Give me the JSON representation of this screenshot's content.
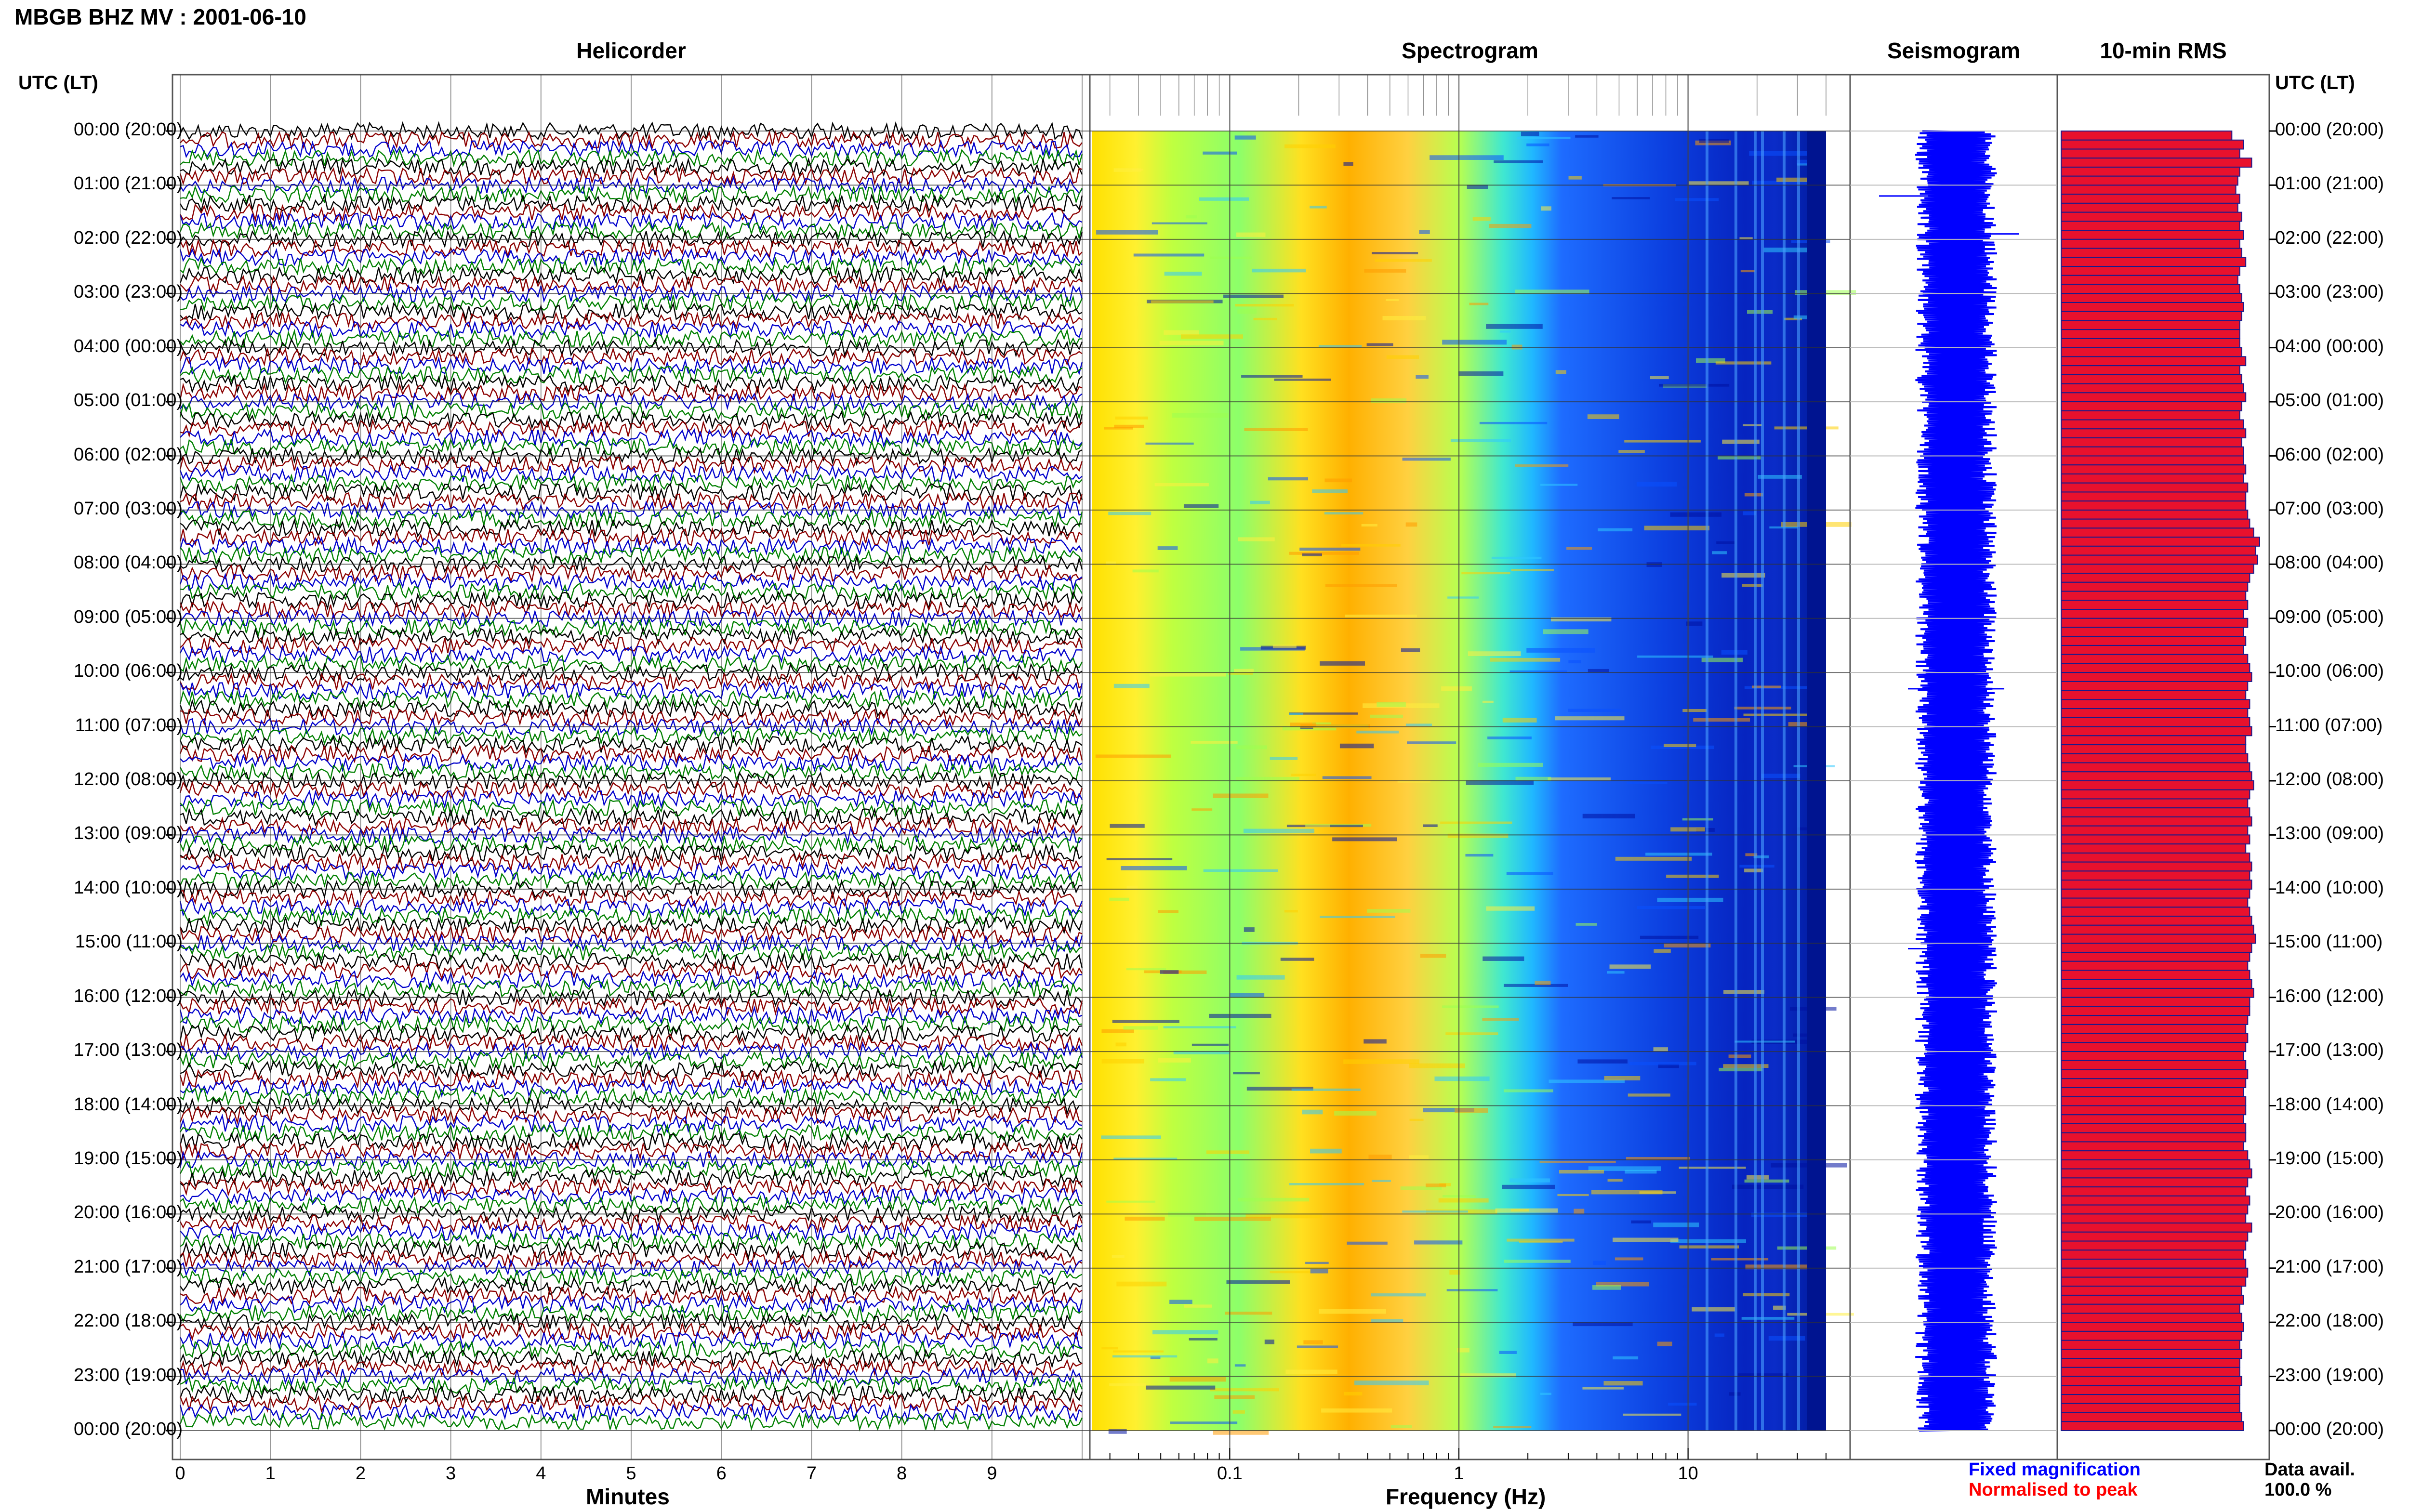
{
  "header": {
    "title": "MBGB BHZ MV : 2001-06-10"
  },
  "panels": {
    "helicorder": "Helicorder",
    "spectrogram": "Spectrogram",
    "seismogram": "Seismogram",
    "rms": "10-min RMS"
  },
  "time_axis_label": "UTC (LT)",
  "hours": [
    "00:00 (20:00)",
    "01:00 (21:00)",
    "02:00 (22:00)",
    "03:00 (23:00)",
    "04:00 (00:00)",
    "05:00 (01:00)",
    "06:00 (02:00)",
    "07:00 (03:00)",
    "08:00 (04:00)",
    "09:00 (05:00)",
    "10:00 (06:00)",
    "11:00 (07:00)",
    "12:00 (08:00)",
    "13:00 (09:00)",
    "14:00 (10:00)",
    "15:00 (11:00)",
    "16:00 (12:00)",
    "17:00 (13:00)",
    "18:00 (14:00)",
    "19:00 (15:00)",
    "20:00 (16:00)",
    "21:00 (17:00)",
    "22:00 (18:00)",
    "23:00 (19:00)",
    "00:00 (20:00)"
  ],
  "helicorder_axis": {
    "label": "Minutes",
    "ticks": [
      "0",
      "1",
      "2",
      "3",
      "4",
      "5",
      "6",
      "7",
      "8",
      "9"
    ]
  },
  "spectrogram_axis": {
    "label": "Frequency (Hz)",
    "ticks": [
      "0.1",
      "1",
      "10"
    ],
    "scale": "log"
  },
  "legend": {
    "fixed": "Fixed magnification",
    "normalised": "Normalised to peak",
    "data_avail_label": "Data avail.",
    "data_avail_value": "100.0 %"
  },
  "colors": {
    "trace_cycle": [
      "#000000",
      "#8b0000",
      "#0000cc",
      "#008000"
    ],
    "seismogram": "#0000ff",
    "rms_fill": "#e8112d",
    "rms_edge": "#1a1a8c",
    "legend_fixed": "#0000ff",
    "legend_normalised": "#ff0000"
  },
  "chart_data": [
    {
      "type": "line",
      "title": "Helicorder",
      "xlabel": "Minutes",
      "xlim": [
        0,
        10
      ],
      "rows": 144,
      "row_span_minutes": 10,
      "color_cycle": [
        "black",
        "darkred",
        "blue",
        "green"
      ]
    },
    {
      "type": "heatmap",
      "title": "Spectrogram",
      "xlabel": "Frequency (Hz)",
      "xscale": "log",
      "xlim": [
        0.025,
        40
      ],
      "colormap": "jet"
    },
    {
      "type": "line",
      "title": "Seismogram",
      "series": [
        {
          "name": "Fixed magnification"
        }
      ]
    },
    {
      "type": "bar",
      "title": "10-min RMS",
      "orientation": "horizontal",
      "bars": 144,
      "values_normalised": [
        0.86,
        0.92,
        0.9,
        0.96,
        0.9,
        0.89,
        0.88,
        0.9,
        0.89,
        0.91,
        0.9,
        0.92,
        0.9,
        0.91,
        0.93,
        0.9,
        0.89,
        0.9,
        0.91,
        0.92,
        0.91,
        0.9,
        0.9,
        0.9,
        0.91,
        0.93,
        0.9,
        0.91,
        0.92,
        0.93,
        0.91,
        0.9,
        0.92,
        0.93,
        0.91,
        0.92,
        0.92,
        0.93,
        0.92,
        0.94,
        0.93,
        0.93,
        0.94,
        0.95,
        0.97,
        1.0,
        0.98,
        0.99,
        0.97,
        0.95,
        0.94,
        0.93,
        0.94,
        0.92,
        0.94,
        0.92,
        0.93,
        0.92,
        0.94,
        0.95,
        0.96,
        0.94,
        0.93,
        0.95,
        0.94,
        0.95,
        0.96,
        0.93,
        0.93,
        0.94,
        0.95,
        0.96,
        0.97,
        0.95,
        0.94,
        0.95,
        0.96,
        0.94,
        0.95,
        0.93,
        0.95,
        0.96,
        0.95,
        0.96,
        0.95,
        0.94,
        0.95,
        0.96,
        0.97,
        0.98,
        0.96,
        0.95,
        0.94,
        0.95,
        0.96,
        0.97,
        0.95,
        0.95,
        0.94,
        0.93,
        0.94,
        0.93,
        0.92,
        0.93,
        0.94,
        0.93,
        0.92,
        0.93,
        0.93,
        0.92,
        0.93,
        0.93,
        0.92,
        0.94,
        0.95,
        0.96,
        0.94,
        0.93,
        0.95,
        0.94,
        0.93,
        0.96,
        0.94,
        0.93,
        0.92,
        0.93,
        0.94,
        0.93,
        0.91,
        0.92,
        0.9,
        0.91,
        0.92,
        0.91,
        0.9,
        0.91,
        0.9,
        0.9,
        0.91,
        0.9,
        0.9,
        0.9,
        0.91,
        0.92
      ],
      "series": [
        {
          "name": "Normalised to peak"
        }
      ]
    }
  ]
}
